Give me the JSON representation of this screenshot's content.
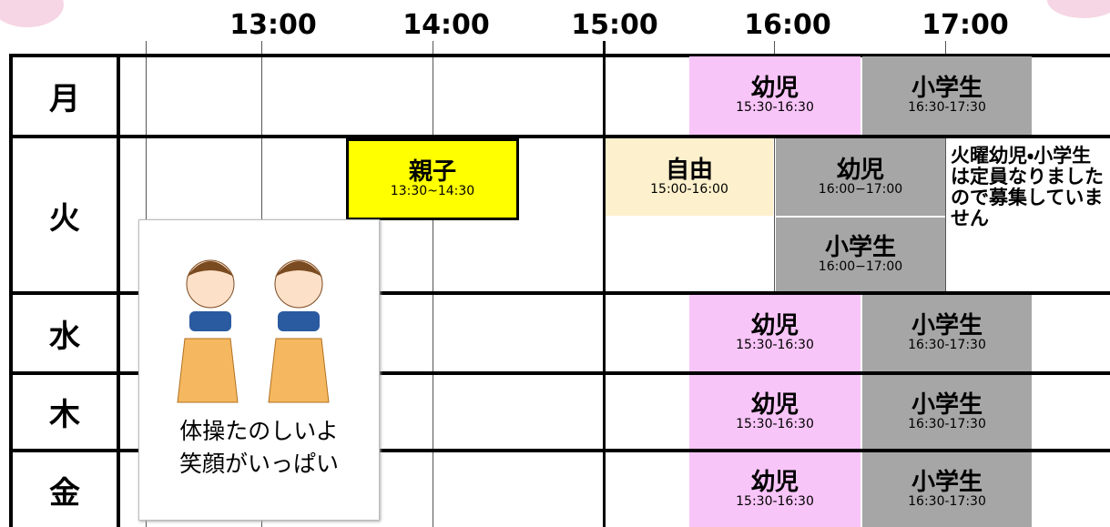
{
  "header": {
    "times": [
      "13:00",
      "14:00",
      "15:00",
      "16:00",
      "17:00"
    ]
  },
  "days": [
    "月",
    "火",
    "水",
    "木",
    "金"
  ],
  "mon": [
    {
      "title": "幼児",
      "time": "15:30-16:30"
    },
    {
      "title": "小学生",
      "time": "16:30-17:30"
    }
  ],
  "tue": [
    {
      "title": "親子",
      "time": "13:30~14:30"
    },
    {
      "title": "自由",
      "time": "15:00-16:00"
    },
    {
      "title": "幼児",
      "time": "16:00−17:00"
    },
    {
      "title": "小学生",
      "time": "16:00−17:00"
    }
  ],
  "tue_note": "火曜幼児・小学生は定員なりましたので募集していません",
  "wed": [
    {
      "title": "幼児",
      "time": "15:30-16:30"
    },
    {
      "title": "小学生",
      "time": "16:30-17:30"
    }
  ],
  "thu": [
    {
      "title": "幼児",
      "time": "15:30-16:30"
    },
    {
      "title": "小学生",
      "time": "16:30-17:30"
    }
  ],
  "fri": [
    {
      "title": "幼児",
      "time": "15:30-16:30"
    },
    {
      "title": "小学生",
      "time": "16:30-17:30"
    }
  ],
  "card": {
    "lines": [
      "体操たのしいよ",
      "笑顔がいっぱい"
    ]
  }
}
